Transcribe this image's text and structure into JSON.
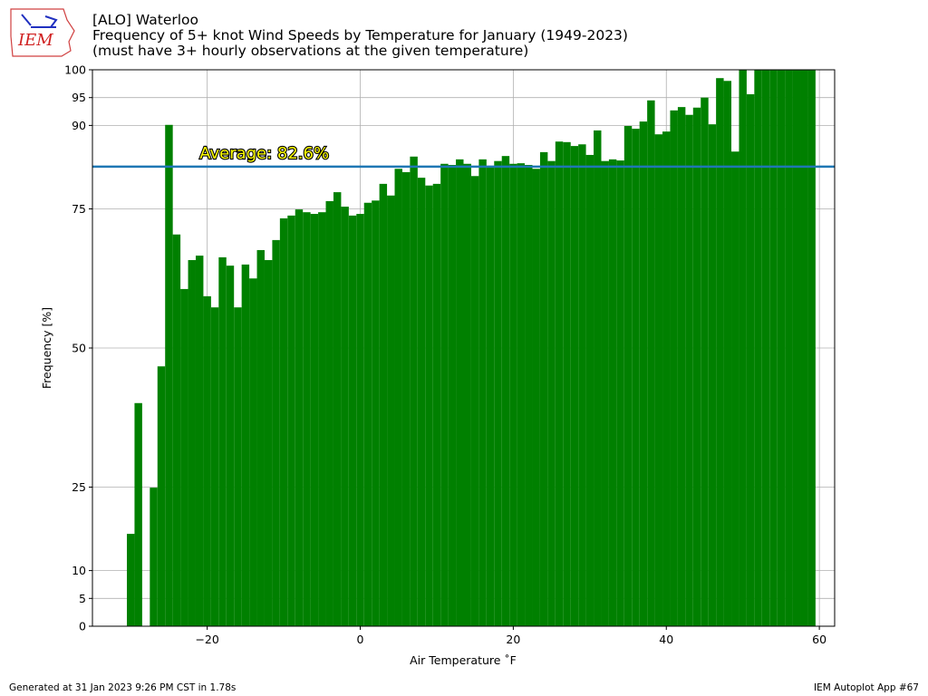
{
  "chart_data": {
    "type": "bar",
    "title": "[ALO] Waterloo",
    "subtitle": "Frequency of 5+ knot Wind Speeds by Temperature for January (1949-2023)",
    "subtitle2": "(must have 3+ hourly observations at the given temperature)",
    "x_label": "Air Temperature ˚F",
    "y_label": "Frequency [%]",
    "color": "#008000",
    "x": [
      -30,
      -29,
      -28,
      -27,
      -26,
      -25,
      -24,
      -23,
      -22,
      -21,
      -20,
      -19,
      -18,
      -17,
      -16,
      -15,
      -14,
      -13,
      -12,
      -11,
      -10,
      -9,
      -8,
      -7,
      -6,
      -5,
      -4,
      -3,
      -2,
      -1,
      0,
      1,
      2,
      3,
      4,
      5,
      6,
      7,
      8,
      9,
      10,
      11,
      12,
      13,
      14,
      15,
      16,
      17,
      18,
      19,
      20,
      21,
      22,
      23,
      24,
      25,
      26,
      27,
      28,
      29,
      30,
      31,
      32,
      33,
      34,
      35,
      36,
      37,
      38,
      39,
      40,
      41,
      42,
      43,
      44,
      45,
      46,
      47,
      48,
      49,
      50,
      51,
      52,
      53,
      54,
      55,
      56,
      57,
      58,
      59
    ],
    "values": [
      16.6,
      40.1,
      null,
      24.9,
      46.7,
      90.1,
      70.4,
      60.6,
      65.8,
      66.6,
      59.3,
      57.3,
      66.3,
      64.8,
      57.3,
      65.0,
      62.5,
      67.6,
      65.8,
      69.4,
      73.3,
      73.8,
      74.9,
      74.4,
      74.1,
      74.4,
      76.4,
      78.0,
      75.4,
      73.8,
      74.1,
      76.1,
      76.5,
      79.5,
      77.4,
      82.2,
      81.6,
      84.4,
      80.6,
      79.2,
      79.5,
      83.1,
      82.9,
      83.9,
      83.1,
      80.9,
      83.9,
      82.7,
      83.6,
      84.5,
      83.1,
      83.2,
      82.9,
      82.2,
      85.2,
      83.6,
      87.1,
      87.0,
      86.3,
      86.6,
      84.7,
      89.1,
      83.6,
      83.9,
      83.7,
      89.9,
      89.4,
      90.7,
      94.5,
      88.4,
      88.9,
      92.7,
      93.3,
      91.9,
      93.2,
      95.0,
      90.2,
      98.5,
      98.0,
      85.3,
      100,
      95.6,
      100,
      100,
      100,
      100,
      100,
      100,
      100,
      100
    ],
    "average": {
      "value": 82.6,
      "label": "Average: 82.6%",
      "color": "#1f77b4"
    },
    "xlim": [
      -35,
      62
    ],
    "ylim": [
      0,
      100
    ],
    "xticks": [
      {
        "value": -20,
        "label": "−20"
      },
      0,
      20,
      40,
      60
    ],
    "yticks": [
      0,
      5,
      10,
      25,
      50,
      75,
      90,
      95,
      100
    ],
    "grid": true
  },
  "footer_left": "Generated at 31 Jan 2023 9:26 PM CST in 1.78s",
  "footer_right": "IEM Autoplot App #67",
  "logo_text": "IEM"
}
